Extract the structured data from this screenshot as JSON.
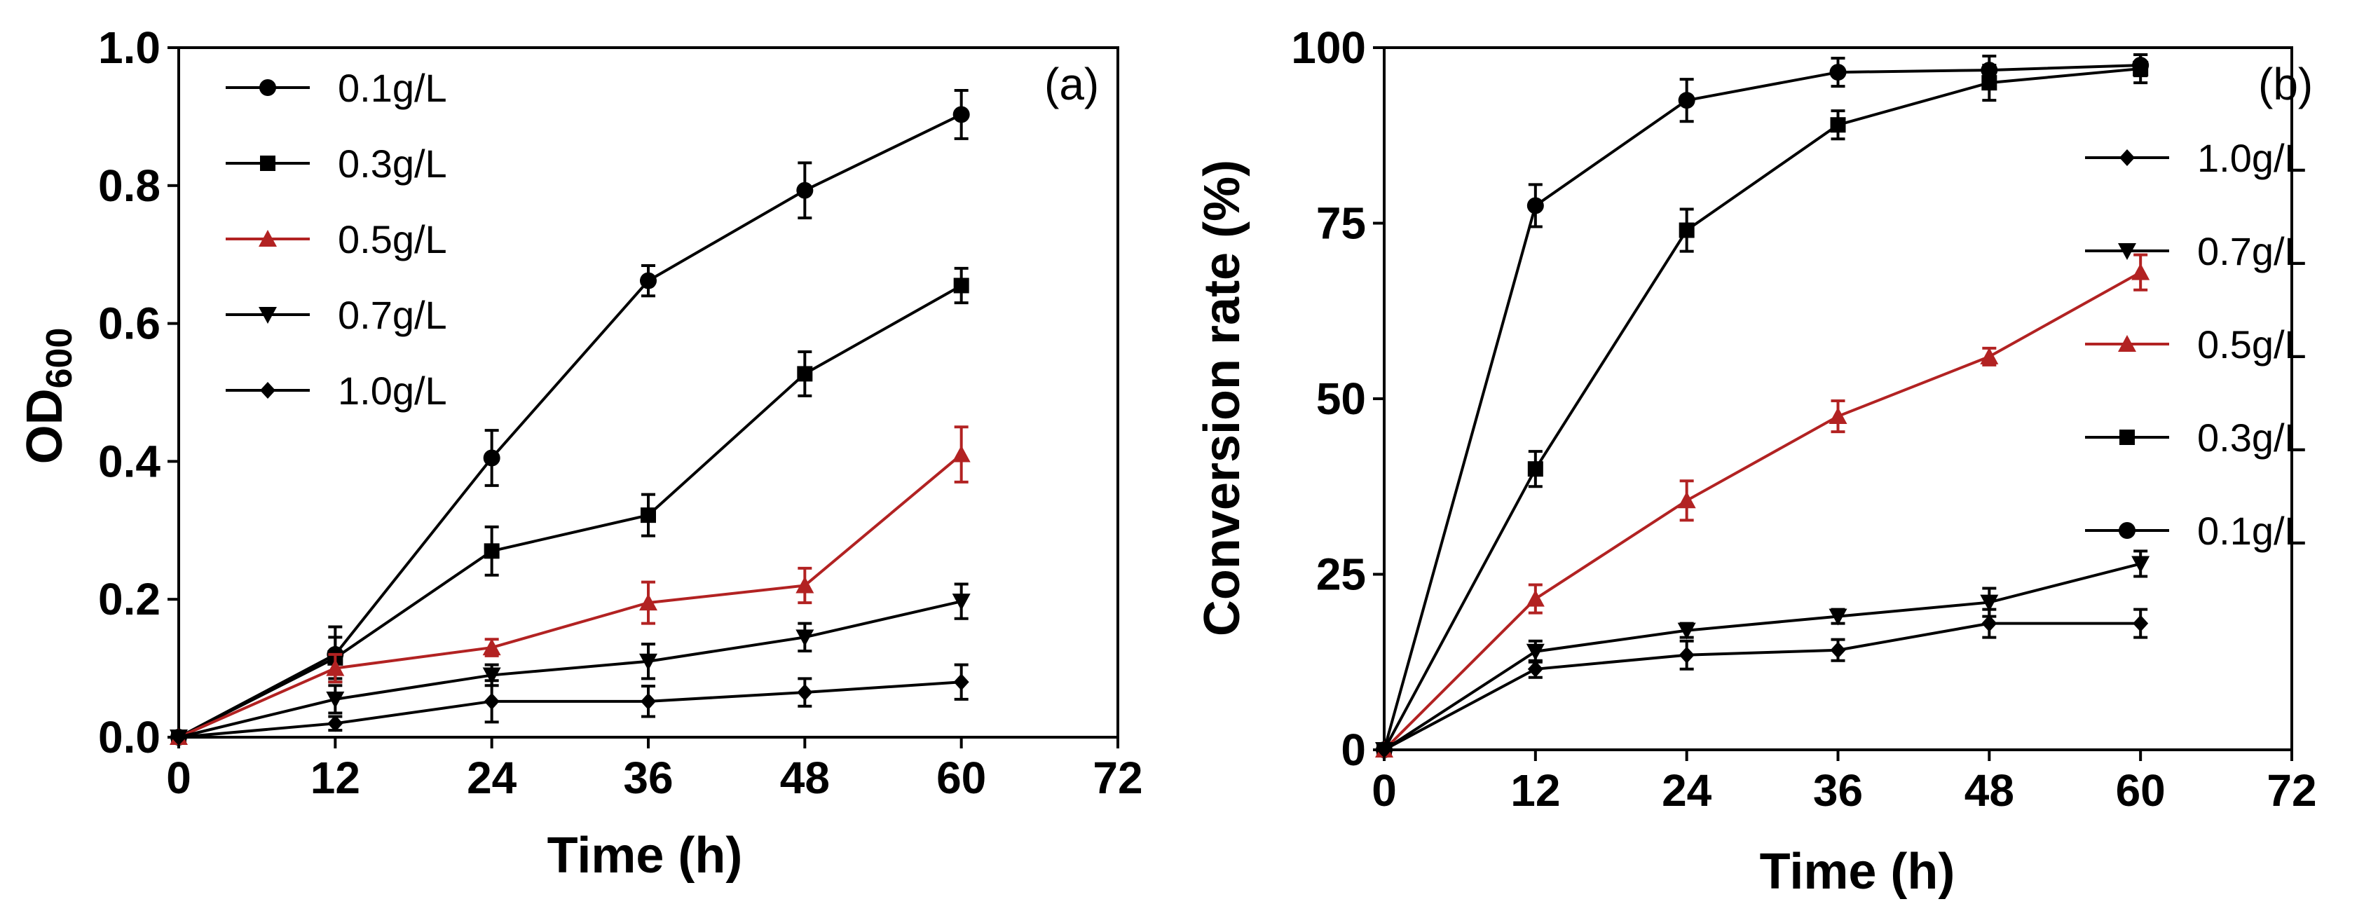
{
  "figure": "two-panel line chart",
  "chart_data": [
    {
      "type": "line",
      "panel_label": "(a)",
      "xlabel": "Time (h)",
      "ylabel_main": "OD",
      "ylabel_sub": "600",
      "xlim": [
        0,
        72
      ],
      "ylim": [
        0,
        1.0
      ],
      "xticks": [
        "0",
        "12",
        "24",
        "36",
        "48",
        "60",
        "72"
      ],
      "yticks": [
        "0.0",
        "0.2",
        "0.4",
        "0.6",
        "0.8",
        "1.0"
      ],
      "x": [
        0,
        12,
        24,
        36,
        48,
        60
      ],
      "legend_position": "top-left",
      "series": [
        {
          "name": "0.1g/L",
          "marker": "circle",
          "color": "#000000",
          "values": [
            0.0,
            0.12,
            0.405,
            0.662,
            0.793,
            0.903
          ],
          "errors": [
            0.0,
            0.04,
            0.04,
            0.022,
            0.04,
            0.035
          ]
        },
        {
          "name": "0.3g/L",
          "marker": "square",
          "color": "#000000",
          "values": [
            0.0,
            0.115,
            0.27,
            0.322,
            0.527,
            0.655
          ],
          "errors": [
            0.0,
            0.03,
            0.035,
            0.03,
            0.032,
            0.025
          ]
        },
        {
          "name": "0.5g/L",
          "marker": "triangle-up",
          "color": "#b22222",
          "values": [
            0.0,
            0.1,
            0.13,
            0.195,
            0.22,
            0.41
          ],
          "errors": [
            0.0,
            0.02,
            0.012,
            0.03,
            0.025,
            0.04
          ]
        },
        {
          "name": "0.7g/L",
          "marker": "triangle-down",
          "color": "#000000",
          "values": [
            0.0,
            0.055,
            0.09,
            0.11,
            0.145,
            0.197
          ],
          "errors": [
            0.0,
            0.02,
            0.015,
            0.025,
            0.02,
            0.025
          ]
        },
        {
          "name": "1.0g/L",
          "marker": "diamond",
          "color": "#000000",
          "values": [
            0.0,
            0.02,
            0.052,
            0.052,
            0.065,
            0.08
          ],
          "errors": [
            0.0,
            0.01,
            0.03,
            0.022,
            0.02,
            0.025
          ]
        }
      ]
    },
    {
      "type": "line",
      "panel_label": "(b)",
      "xlabel": "Time (h)",
      "ylabel": "Conversion rate (%)",
      "xlim": [
        0,
        72
      ],
      "ylim": [
        0,
        100
      ],
      "xticks": [
        "0",
        "12",
        "24",
        "36",
        "48",
        "60",
        "72"
      ],
      "yticks": [
        "0",
        "25",
        "50",
        "75",
        "100"
      ],
      "x": [
        0,
        12,
        24,
        36,
        48,
        60
      ],
      "legend_position": "right",
      "legend_order": [
        "1.0g/L",
        "0.7g/L",
        "0.5g/L",
        "0.3g/L",
        "0.1g/L"
      ],
      "series": [
        {
          "name": "0.1g/L",
          "marker": "circle",
          "color": "#000000",
          "values": [
            0,
            77.5,
            92.5,
            96.5,
            96.8,
            97.5
          ],
          "errors": [
            0,
            3,
            3,
            2,
            2,
            1.5
          ]
        },
        {
          "name": "0.3g/L",
          "marker": "square",
          "color": "#000000",
          "values": [
            0,
            40,
            74,
            89,
            95,
            97
          ],
          "errors": [
            0,
            2.5,
            3,
            2,
            2.5,
            2
          ]
        },
        {
          "name": "0.5g/L",
          "marker": "triangle-up",
          "color": "#b22222",
          "values": [
            0,
            21.5,
            35.5,
            47.5,
            56,
            68
          ],
          "errors": [
            0,
            2,
            2.8,
            2.2,
            1.2,
            2.5
          ]
        },
        {
          "name": "0.7g/L",
          "marker": "triangle-down",
          "color": "#000000",
          "values": [
            0,
            14,
            17,
            19,
            21,
            26.5
          ],
          "errors": [
            0,
            1.5,
            1,
            1,
            2,
            1.8
          ]
        },
        {
          "name": "1.0g/L",
          "marker": "diamond",
          "color": "#000000",
          "values": [
            0,
            11.5,
            13.5,
            14.2,
            18,
            18
          ],
          "errors": [
            0,
            1.2,
            2,
            1.5,
            2,
            2
          ]
        }
      ]
    }
  ]
}
